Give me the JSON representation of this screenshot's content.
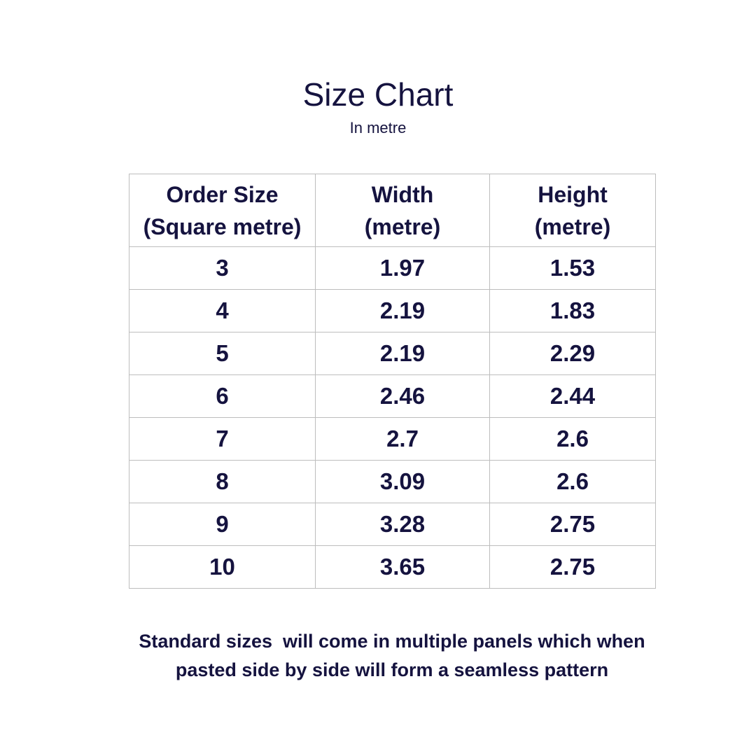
{
  "title": "Size Chart",
  "subtitle": "In metre",
  "table": {
    "headers": [
      "Order Size\n(Square metre)",
      "Width\n(metre)",
      "Height\n(metre)"
    ],
    "rows": [
      [
        "3",
        "1.97",
        "1.53"
      ],
      [
        "4",
        "2.19",
        "1.83"
      ],
      [
        "5",
        "2.19",
        "2.29"
      ],
      [
        "6",
        "2.46",
        "2.44"
      ],
      [
        "7",
        "2.7",
        "2.6"
      ],
      [
        "8",
        "3.09",
        "2.6"
      ],
      [
        "9",
        "3.28",
        "2.75"
      ],
      [
        "10",
        "3.65",
        "2.75"
      ]
    ]
  },
  "note_line1": "Standard sizes  will come in multiple panels which when",
  "note_line2": "pasted side by side will form a seamless pattern",
  "colors": {
    "text": "#15133f",
    "border": "#bdbdbd",
    "background": "#ffffff"
  }
}
